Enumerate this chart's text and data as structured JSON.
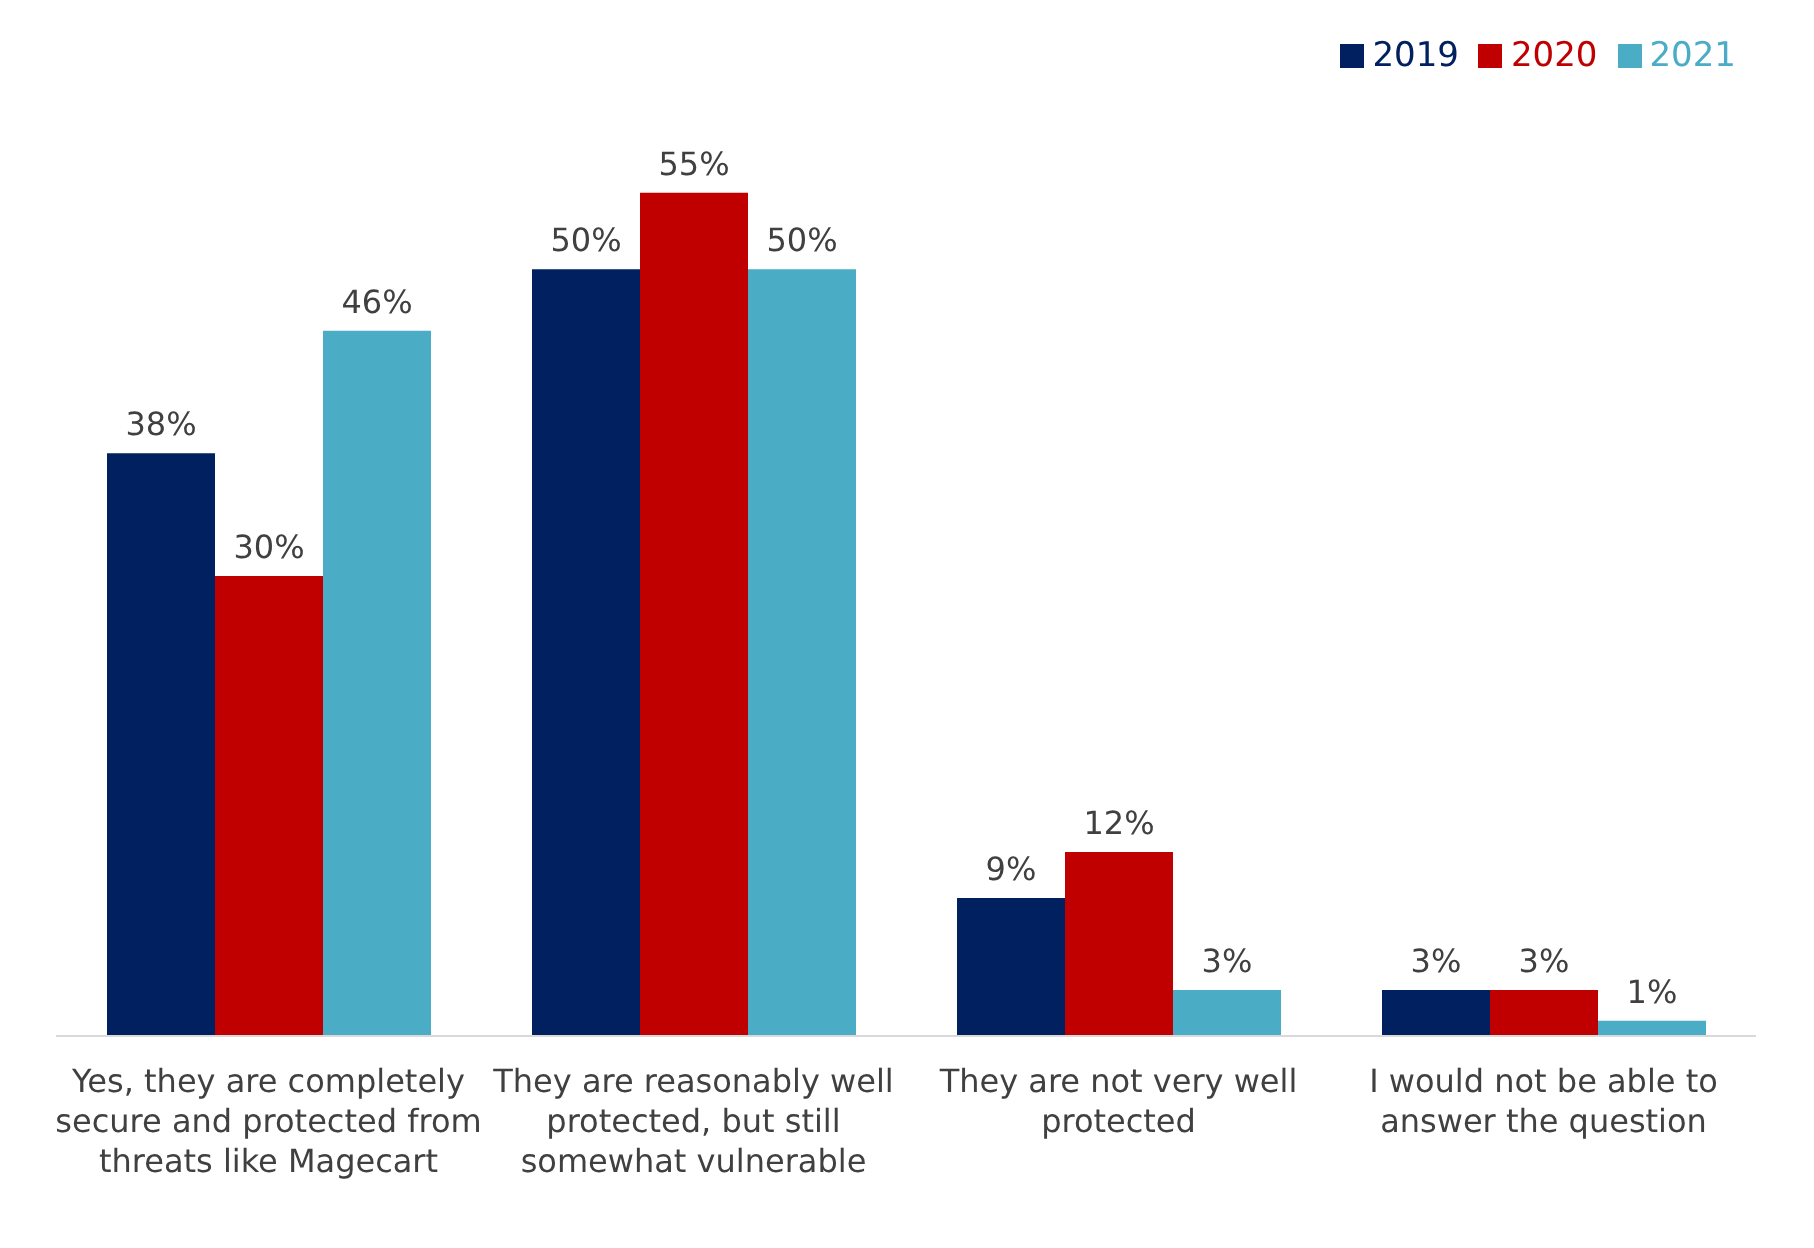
{
  "chart_data": {
    "type": "bar",
    "categories": [
      "Yes, they are completely secure and protected from threats like Magecart",
      "They are reasonably well protected, but still somewhat vulnerable",
      "They are not very well protected",
      "I would not be able to answer the question"
    ],
    "series": [
      {
        "name": "2019",
        "color": "#002060",
        "values": [
          38,
          50,
          9,
          3
        ],
        "value_labels": [
          "38%",
          "50%",
          "9%",
          "3%"
        ]
      },
      {
        "name": "2020",
        "color": "#c00000",
        "values": [
          30,
          55,
          12,
          3
        ],
        "value_labels": [
          "30%",
          "55%",
          "12%",
          "3%"
        ]
      },
      {
        "name": "2021",
        "color": "#4bacc6",
        "values": [
          46,
          50,
          3,
          1
        ],
        "value_labels": [
          "46%",
          "50%",
          "3%",
          "1%"
        ]
      }
    ],
    "legend": "top right",
    "grid": false
  }
}
